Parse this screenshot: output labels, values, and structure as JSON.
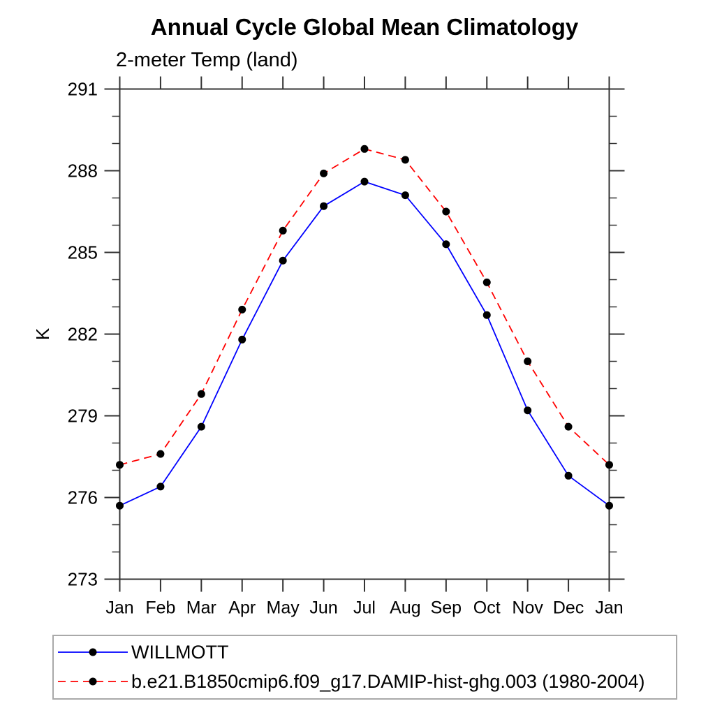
{
  "header": {
    "title": "Annual Cycle Global Mean Climatology",
    "subtitle": "2-meter Temp (land)"
  },
  "chart_data": {
    "type": "line",
    "title": "Annual Cycle Global Mean Climatology",
    "subtitle": "2-meter Temp (land)",
    "xlabel": "",
    "ylabel": "K",
    "x_tick_labels": [
      "Jan",
      "Feb",
      "Mar",
      "Apr",
      "May",
      "Jun",
      "Jul",
      "Aug",
      "Sep",
      "Oct",
      "Nov",
      "Dec",
      "Jan"
    ],
    "y_ticks": [
      273,
      276,
      279,
      282,
      285,
      288,
      291
    ],
    "y_minor_step": 1,
    "ylim": [
      273,
      291
    ],
    "grid": false,
    "legend_position": "bottom",
    "series": [
      {
        "name": "WILLMOTT",
        "color": "#0000ff",
        "style": "solid",
        "marker": "circle",
        "marker_color": "#000000",
        "values": [
          275.7,
          276.4,
          278.6,
          281.8,
          284.7,
          286.7,
          287.6,
          287.1,
          285.3,
          282.7,
          279.2,
          276.8,
          275.7
        ]
      },
      {
        "name": "b.e21.B1850cmip6.f09_g17.DAMIP-hist-ghg.003 (1980-2004)",
        "color": "#ff0000",
        "style": "dashed",
        "marker": "circle",
        "marker_color": "#000000",
        "values": [
          277.2,
          277.6,
          279.8,
          282.9,
          285.8,
          287.9,
          288.8,
          288.4,
          286.5,
          283.9,
          281.0,
          278.6,
          277.2
        ]
      }
    ],
    "colors": {
      "axis": "#333333",
      "tick": "#333333",
      "text": "#000000",
      "legend_border": "#a9a9a9"
    }
  }
}
